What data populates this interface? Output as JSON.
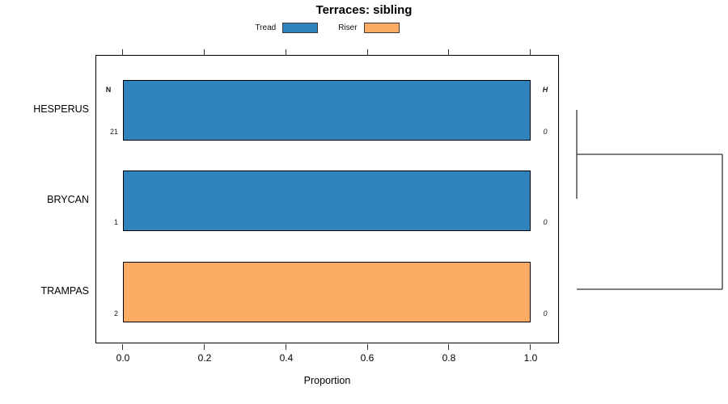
{
  "title": "Terraces: sibling",
  "legend": {
    "items": [
      {
        "label": "Tread",
        "color": "#2E83BC"
      },
      {
        "label": "Riser",
        "color": "#FBAC62"
      }
    ]
  },
  "annotations": {
    "n_header": "N",
    "h_header": "H"
  },
  "xaxis": {
    "label": "Proportion",
    "ticks": [
      "0.0",
      "0.2",
      "0.4",
      "0.6",
      "0.8",
      "1.0"
    ]
  },
  "chart_data": {
    "type": "bar",
    "orientation": "horizontal",
    "title": "Terraces: sibling",
    "xlabel": "Proportion",
    "xlim": [
      0.0,
      1.0
    ],
    "xticks": [
      0.0,
      0.2,
      0.4,
      0.6,
      0.8,
      1.0
    ],
    "grid": false,
    "legend_position": "top-center",
    "series_names": [
      "Tread",
      "Riser"
    ],
    "categories": [
      "HESPERUS",
      "BRYCAN",
      "TRAMPAS"
    ],
    "rows": [
      {
        "label": "HESPERUS",
        "series": "Tread",
        "proportion": 1.0,
        "N": "21",
        "H": "0",
        "color": "#2E83BC"
      },
      {
        "label": "BRYCAN",
        "series": "Tread",
        "proportion": 1.0,
        "N": "1",
        "H": "0",
        "color": "#2E83BC"
      },
      {
        "label": "TRAMPAS",
        "series": "Riser",
        "proportion": 1.0,
        "N": "2",
        "H": "0",
        "color": "#FBAC62"
      }
    ],
    "right_dendrogram": {
      "description": "cluster tree on right side joining row profiles",
      "merges": [
        {
          "members": [
            "HESPERUS",
            "BRYCAN"
          ],
          "relative_height": 0.0
        },
        {
          "members": [
            "HESPERUS+BRYCAN",
            "TRAMPAS"
          ],
          "relative_height": 1.0
        }
      ]
    }
  }
}
